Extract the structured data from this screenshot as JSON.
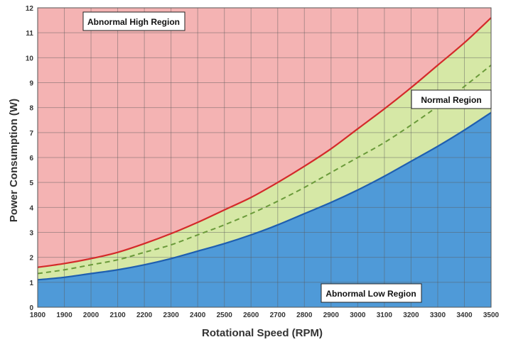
{
  "chart_data": {
    "type": "area",
    "title": "",
    "xlabel": "Rotational Speed (RPM)",
    "ylabel": "Power Consumption (W)",
    "xlim": [
      1800,
      3500
    ],
    "ylim": [
      0,
      12
    ],
    "x_ticks": [
      1800,
      1900,
      2000,
      2100,
      2200,
      2300,
      2400,
      2500,
      2600,
      2700,
      2800,
      2900,
      3000,
      3100,
      3200,
      3300,
      3400,
      3500
    ],
    "y_ticks": [
      0,
      1,
      2,
      3,
      4,
      5,
      6,
      7,
      8,
      9,
      10,
      11,
      12
    ],
    "grid": true,
    "x": [
      1800,
      1900,
      2000,
      2100,
      2200,
      2300,
      2400,
      2500,
      2600,
      2700,
      2800,
      2900,
      3000,
      3100,
      3200,
      3300,
      3400,
      3500
    ],
    "series": [
      {
        "values": [
          1.6,
          1.75,
          1.95,
          2.2,
          2.55,
          2.95,
          3.4,
          3.9,
          4.4,
          5.0,
          5.65,
          6.35,
          7.15,
          7.95,
          8.8,
          9.7,
          10.6,
          11.6
        ],
        "color": "#d42a2a",
        "style": "solid"
      },
      {
        "values": [
          1.35,
          1.5,
          1.7,
          1.9,
          2.2,
          2.5,
          2.9,
          3.3,
          3.75,
          4.25,
          4.8,
          5.4,
          6.0,
          6.6,
          7.3,
          8.05,
          8.85,
          9.7
        ],
        "color": "#6a9a3a",
        "style": "dashed"
      },
      {
        "values": [
          1.1,
          1.2,
          1.35,
          1.5,
          1.7,
          1.95,
          2.25,
          2.55,
          2.9,
          3.3,
          3.75,
          4.2,
          4.7,
          5.25,
          5.85,
          6.45,
          7.1,
          7.8
        ],
        "color": "#1f5fb0",
        "style": "solid"
      }
    ],
    "regions": [
      {
        "label": "Abnormal High Region",
        "color": "#f4b3b3"
      },
      {
        "label": "Normal Region",
        "color": "#d6e8a6"
      },
      {
        "label": "Abnormal Low Region",
        "color": "#4f9ad8"
      }
    ]
  }
}
